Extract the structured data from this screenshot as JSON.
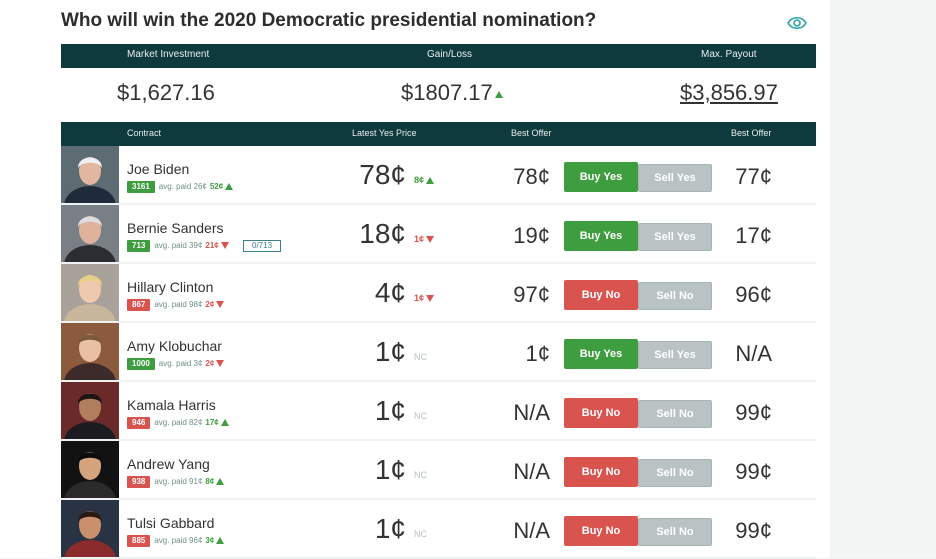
{
  "title": "Who will win the 2020 Democratic presidential nomination?",
  "icons": {
    "watch": "eye-icon"
  },
  "summary": {
    "headers": {
      "investment": "Market Investment",
      "gain": "Gain/Loss",
      "payout": "Max. Payout"
    },
    "investment": "$1,627.16",
    "gain": "$1807.17",
    "payout": "$3,856.97"
  },
  "table": {
    "headers": {
      "contract": "Contract",
      "latest": "Latest Yes Price",
      "best1": "Best Offer",
      "best2": "Best Offer"
    }
  },
  "rows": [
    {
      "name": "Joe Biden",
      "shares": "3161",
      "avg": "avg. paid 26¢",
      "change": "52¢",
      "order": "",
      "price": "78¢",
      "price_change": "8¢",
      "offer1": "78¢",
      "btn1": "Buy Yes",
      "btn2": "Sell Yes",
      "offer2": "77¢"
    },
    {
      "name": "Bernie Sanders",
      "shares": "713",
      "avg": "avg. paid 39¢",
      "change": "21¢",
      "order": "0/713",
      "price": "18¢",
      "price_change": "1¢",
      "offer1": "19¢",
      "btn1": "Buy Yes",
      "btn2": "Sell Yes",
      "offer2": "17¢"
    },
    {
      "name": "Hillary Clinton",
      "shares": "867",
      "avg": "avg. paid 98¢",
      "change": "2¢",
      "order": "",
      "price": "4¢",
      "price_change": "1¢",
      "offer1": "97¢",
      "btn1": "Buy No",
      "btn2": "Sell No",
      "offer2": "96¢"
    },
    {
      "name": "Amy Klobuchar",
      "shares": "1000",
      "avg": "avg. paid 3¢",
      "change": "2¢",
      "order": "",
      "price": "1¢",
      "price_change": "NC",
      "offer1": "1¢",
      "btn1": "Buy Yes",
      "btn2": "Sell Yes",
      "offer2": "N/A"
    },
    {
      "name": "Kamala Harris",
      "shares": "946",
      "avg": "avg. paid 82¢",
      "change": "17¢",
      "order": "",
      "price": "1¢",
      "price_change": "NC",
      "offer1": "N/A",
      "btn1": "Buy No",
      "btn2": "Sell No",
      "offer2": "99¢"
    },
    {
      "name": "Andrew Yang",
      "shares": "938",
      "avg": "avg. paid 91¢",
      "change": "8¢",
      "order": "",
      "price": "1¢",
      "price_change": "NC",
      "offer1": "N/A",
      "btn1": "Buy No",
      "btn2": "Sell No",
      "offer2": "99¢"
    },
    {
      "name": "Tulsi Gabbard",
      "shares": "885",
      "avg": "avg. paid 96¢",
      "change": "3¢",
      "order": "",
      "price": "1¢",
      "price_change": "NC",
      "offer1": "N/A",
      "btn1": "Buy No",
      "btn2": "Sell No",
      "offer2": "99¢"
    }
  ],
  "colors": {
    "header": "#0e3a3d",
    "green": "#3e9d3e",
    "red": "#d9534f",
    "gray_button": "#b9c3c3"
  }
}
